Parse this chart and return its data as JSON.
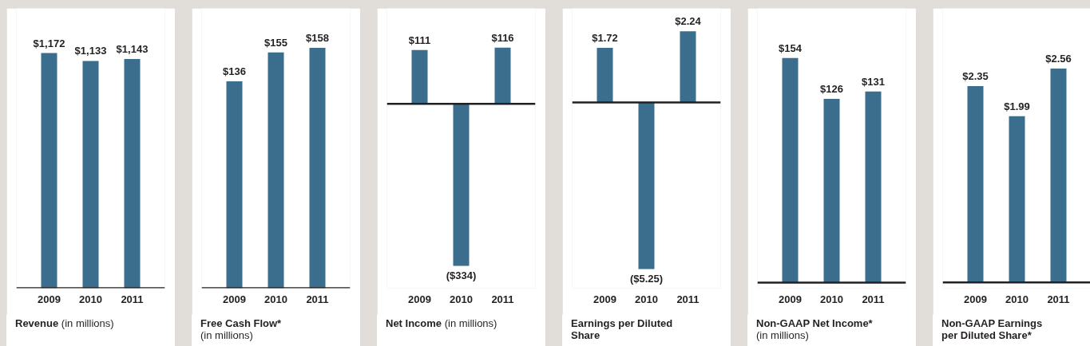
{
  "chart_data": [
    {
      "type": "bar",
      "title": "Revenue",
      "subtitle": "(in millions)",
      "categories": [
        "2009",
        "2010",
        "2011"
      ],
      "values": [
        1172,
        1133,
        1143
      ],
      "value_labels": [
        "$1,172",
        "$1,133",
        "$1,143"
      ],
      "color": "#3b6e8c",
      "ylim": [
        0,
        1395
      ],
      "tick_labels": "x"
    },
    {
      "type": "bar",
      "title": "Free Cash Flow*",
      "subtitle": "(in millions)",
      "categories": [
        "2009",
        "2010",
        "2011"
      ],
      "values": [
        136,
        155,
        158
      ],
      "value_labels": [
        "$136",
        "$155",
        "$158"
      ],
      "color": "#3b6e8c",
      "ylim": [
        0,
        184
      ],
      "tick_labels": "x"
    },
    {
      "type": "bar",
      "title": "Net Income",
      "subtitle": "(in millions)",
      "categories": [
        "2009",
        "2010",
        "2011"
      ],
      "values": [
        111,
        -334,
        116
      ],
      "value_labels": [
        "$111",
        "($334)",
        "$116"
      ],
      "color": "#3b6e8c",
      "ylim": [
        -380,
        197
      ],
      "tick_labels": "x"
    },
    {
      "type": "bar",
      "title": "Earnings per Diluted Share",
      "categories": [
        "2009",
        "2010",
        "2011"
      ],
      "values": [
        1.72,
        -5.25,
        2.24
      ],
      "value_labels": [
        "$1.72",
        "($5.25)",
        "$2.24"
      ],
      "color": "#3b6e8c",
      "ylim": [
        -5.85,
        2.96
      ],
      "tick_labels": "x"
    },
    {
      "type": "bar",
      "title": "Non-GAAP Net Income*",
      "subtitle": "(in millions)",
      "categories": [
        "2009",
        "2010",
        "2011"
      ],
      "values": [
        154,
        126,
        131
      ],
      "value_labels": [
        "$154",
        "$126",
        "$131"
      ],
      "color": "#3b6e8c",
      "ylim": [
        -3.8,
        188
      ],
      "tick_labels": "x"
    },
    {
      "type": "bar",
      "title": "Non-GAAP Earnings per Diluted Share*",
      "categories": [
        "2009",
        "2010",
        "2011"
      ],
      "values": [
        2.35,
        1.99,
        2.56
      ],
      "value_labels": [
        "$2.35",
        "$1.99",
        "$2.56"
      ],
      "color": "#3b6e8c",
      "ylim": [
        -0.07,
        3.28
      ],
      "tick_labels": "x"
    }
  ]
}
